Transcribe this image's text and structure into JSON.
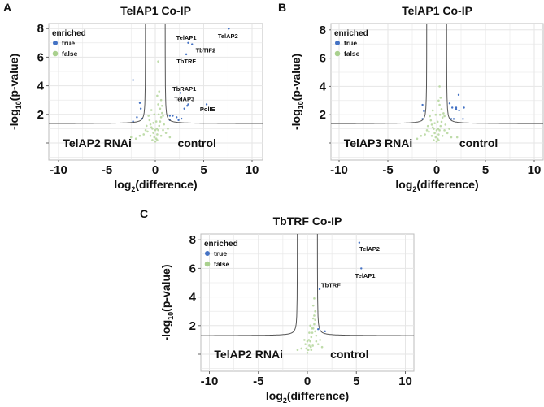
{
  "colors": {
    "true": "#4472c4",
    "false": "#a9d08e",
    "threshold": "#555555",
    "grid": "#e6e6e6",
    "border": "#bdbdbd"
  },
  "chart_data": [
    {
      "panel": "A",
      "type": "scatter",
      "title": "TelAP1 Co-IP",
      "xlabel": "log2(difference)",
      "xlabel_base": "log",
      "xlabel_sub": "2",
      "xlabel_rest": "(difference)",
      "ylabel_base": "-log",
      "ylabel_sub": "10",
      "ylabel_rest": "(p-value)",
      "xlim": [
        -11,
        11
      ],
      "ylim": [
        -1.2,
        8.3
      ],
      "xticks": [
        -10,
        -5,
        0,
        5,
        10
      ],
      "xtick_labels": [
        "-10",
        "-5",
        "0",
        "5",
        "10"
      ],
      "yticks": [
        0,
        2,
        4,
        6,
        8
      ],
      "ytick_labels": [
        "",
        "2",
        "4",
        "6",
        "8"
      ],
      "grid": true,
      "legend": {
        "title": "enriched",
        "entries": [
          "true",
          "false"
        ],
        "placement": "top-left"
      },
      "region_labels": {
        "left": "TelAP2 RNAi",
        "right": "control"
      },
      "threshold": {
        "s0": 1.0,
        "base": 1.35,
        "c": 0.12
      },
      "enriched_true": [
        [
          7.6,
          8.0
        ],
        [
          3.4,
          7.0
        ],
        [
          3.8,
          6.9
        ],
        [
          3.2,
          6.2
        ],
        [
          2.6,
          3.5
        ],
        [
          3.4,
          2.7
        ],
        [
          5.3,
          2.7
        ],
        [
          -2.3,
          4.4
        ],
        [
          -1.6,
          2.8
        ],
        [
          -1.5,
          2.4
        ],
        [
          -1.9,
          1.8
        ],
        [
          -2.3,
          1.5
        ],
        [
          -1.35,
          1.7
        ],
        [
          1.5,
          1.9
        ],
        [
          1.8,
          1.9
        ],
        [
          2.2,
          1.8
        ],
        [
          2.4,
          1.6
        ],
        [
          2.7,
          1.7
        ],
        [
          3.0,
          2.4
        ],
        [
          3.3,
          2.6
        ],
        [
          1.5,
          1.6
        ]
      ],
      "enriched_false": [
        [
          0,
          0.1
        ],
        [
          0.1,
          0.3
        ],
        [
          -0.1,
          0.4
        ],
        [
          0.2,
          0.6
        ],
        [
          -0.2,
          0.7
        ],
        [
          0.3,
          0.9
        ],
        [
          -0.3,
          1.0
        ],
        [
          0.4,
          1.2
        ],
        [
          -0.4,
          1.1
        ],
        [
          0.5,
          1.5
        ],
        [
          -0.5,
          1.3
        ],
        [
          0.6,
          1.8
        ],
        [
          -0.6,
          1.6
        ],
        [
          0.7,
          2.1
        ],
        [
          -0.7,
          1.9
        ],
        [
          0.5,
          2.4
        ],
        [
          0.3,
          2.7
        ],
        [
          0.6,
          3.0
        ],
        [
          0.4,
          3.6
        ],
        [
          0.2,
          3.3
        ],
        [
          -0.8,
          0.8
        ],
        [
          0.8,
          0.9
        ],
        [
          -1.2,
          0.6
        ],
        [
          1.1,
          0.7
        ],
        [
          -1.6,
          0.5
        ],
        [
          1.5,
          0.4
        ],
        [
          -2.0,
          0.3
        ],
        [
          -2.5,
          0.4
        ],
        [
          0,
          0.9
        ],
        [
          0.1,
          1.5
        ],
        [
          -0.1,
          2.0
        ],
        [
          0.9,
          1.3
        ],
        [
          -0.9,
          1.2
        ],
        [
          0.3,
          5.7
        ],
        [
          0.7,
          2.6
        ],
        [
          -0.3,
          0.2
        ],
        [
          0.2,
          0.2
        ],
        [
          -0.5,
          0.5
        ],
        [
          0.6,
          0.5
        ],
        [
          0.15,
          1.0
        ],
        [
          -0.2,
          1.4
        ],
        [
          0.35,
          2.0
        ],
        [
          -0.4,
          2.3
        ],
        [
          0.8,
          1.9
        ],
        [
          -1.0,
          0.9
        ],
        [
          1.3,
          1.0
        ]
      ],
      "annotations": [
        {
          "text": "TelAP2",
          "x": 7.5,
          "y": 7.5
        },
        {
          "text": "TelAP1",
          "x": 3.2,
          "y": 7.4
        },
        {
          "text": "TbTIF2",
          "x": 5.2,
          "y": 6.5
        },
        {
          "text": "TbTRF",
          "x": 3.2,
          "y": 5.75
        },
        {
          "text": "TbRAP1",
          "x": 3.0,
          "y": 3.8
        },
        {
          "text": "TelAP3",
          "x": 3.0,
          "y": 3.1
        },
        {
          "text": "PolIE",
          "x": 5.4,
          "y": 2.4
        }
      ]
    },
    {
      "panel": "B",
      "type": "scatter",
      "title": "TelAP1 Co-IP",
      "xlabel": "log2(difference)",
      "xlabel_base": "log",
      "xlabel_sub": "2",
      "xlabel_rest": "(difference)",
      "ylabel_base": "-log",
      "ylabel_sub": "10",
      "ylabel_rest": "(p-value)",
      "xlim": [
        -10.8,
        10.9
      ],
      "ylim": [
        -1.2,
        8.5
      ],
      "xticks": [
        -10,
        -5,
        0,
        5,
        10
      ],
      "xtick_labels": [
        "-10",
        "-5",
        "0",
        "5",
        "10"
      ],
      "yticks": [
        0,
        2,
        4,
        6,
        8
      ],
      "ytick_labels": [
        "",
        "2",
        "4",
        "6",
        "8"
      ],
      "grid": true,
      "legend": {
        "title": "enriched",
        "entries": [
          "true",
          "false"
        ],
        "placement": "top-left"
      },
      "region_labels": {
        "left": "TelAP3 RNAi",
        "right": "control"
      },
      "threshold": {
        "s0": 1.0,
        "base": 1.36,
        "c": 0.12
      },
      "enriched_true": [
        [
          -1.45,
          2.7
        ],
        [
          -1.3,
          2.25
        ],
        [
          -1.45,
          1.7
        ],
        [
          1.33,
          2.8
        ],
        [
          1.6,
          2.5
        ],
        [
          2.0,
          2.5
        ],
        [
          2.25,
          3.4
        ],
        [
          2.3,
          2.3
        ],
        [
          2.8,
          2.5
        ],
        [
          2.7,
          1.7
        ],
        [
          2.0,
          2.4
        ],
        [
          1.5,
          1.7
        ],
        [
          1.75,
          1.7
        ]
      ],
      "enriched_false": [
        [
          0,
          0.1
        ],
        [
          0.1,
          0.3
        ],
        [
          -0.1,
          0.4
        ],
        [
          0.2,
          0.6
        ],
        [
          -0.2,
          0.7
        ],
        [
          0.3,
          0.9
        ],
        [
          -0.3,
          1.0
        ],
        [
          0.4,
          1.2
        ],
        [
          -0.4,
          1.1
        ],
        [
          0.5,
          1.5
        ],
        [
          -0.5,
          1.3
        ],
        [
          0.6,
          1.8
        ],
        [
          -0.6,
          1.6
        ],
        [
          0.7,
          2.1
        ],
        [
          -0.7,
          1.9
        ],
        [
          0.5,
          2.4
        ],
        [
          0.3,
          2.7
        ],
        [
          0.4,
          3.2
        ],
        [
          0.3,
          4.0
        ],
        [
          0.2,
          3.0
        ],
        [
          -0.8,
          0.8
        ],
        [
          0.8,
          0.9
        ],
        [
          -1.2,
          0.6
        ],
        [
          1.1,
          0.7
        ],
        [
          -1.6,
          0.5
        ],
        [
          1.5,
          0.4
        ],
        [
          -2.0,
          0.3
        ],
        [
          2.1,
          0.4
        ],
        [
          0,
          0.9
        ],
        [
          0.1,
          1.5
        ],
        [
          -0.1,
          2.0
        ],
        [
          0.9,
          1.3
        ],
        [
          -0.9,
          1.2
        ],
        [
          -0.3,
          0.2
        ],
        [
          0.2,
          0.2
        ],
        [
          -0.5,
          0.5
        ],
        [
          0.6,
          0.5
        ],
        [
          0.15,
          1.0
        ],
        [
          -0.2,
          1.4
        ],
        [
          0.35,
          2.0
        ],
        [
          -0.4,
          2.3
        ],
        [
          0.8,
          1.9
        ],
        [
          -1.0,
          0.9
        ],
        [
          1.3,
          1.0
        ]
      ],
      "annotations": []
    },
    {
      "panel": "C",
      "type": "scatter",
      "title": "TbTRF Co-IP",
      "xlabel": "log2(difference)",
      "xlabel_base": "log",
      "xlabel_sub": "2",
      "xlabel_rest": "(difference)",
      "ylabel_base": "-log",
      "ylabel_sub": "10",
      "ylabel_rest": "(p-value)",
      "xlim": [
        -10.8,
        10.9
      ],
      "ylim": [
        -1.2,
        8.4
      ],
      "xticks": [
        -10,
        -5,
        0,
        5,
        10
      ],
      "xtick_labels": [
        "-10",
        "-5",
        "0",
        "5",
        "10"
      ],
      "yticks": [
        0,
        2,
        4,
        6,
        8
      ],
      "ytick_labels": [
        "",
        "2",
        "4",
        "6",
        "8"
      ],
      "grid": true,
      "legend": {
        "title": "enriched",
        "entries": [
          "true",
          "false"
        ],
        "placement": "top-left"
      },
      "region_labels": {
        "left": "TelAP2 RNAi",
        "right": "control"
      },
      "threshold": {
        "s0": 1.0,
        "base": 1.29,
        "c": 0.12
      },
      "enriched_true": [
        [
          5.3,
          7.8
        ],
        [
          5.5,
          6.0
        ],
        [
          1.25,
          4.55
        ],
        [
          1.1,
          1.75
        ],
        [
          1.8,
          1.6
        ]
      ],
      "enriched_false": [
        [
          0,
          0.1
        ],
        [
          0.1,
          0.3
        ],
        [
          -0.1,
          0.4
        ],
        [
          0.2,
          0.6
        ],
        [
          -0.2,
          0.7
        ],
        [
          0.3,
          0.9
        ],
        [
          -0.3,
          1.0
        ],
        [
          0.4,
          1.2
        ],
        [
          0.5,
          1.5
        ],
        [
          0.6,
          1.8
        ],
        [
          0.7,
          2.1
        ],
        [
          0.8,
          2.4
        ],
        [
          0.7,
          2.7
        ],
        [
          0.8,
          3.0
        ],
        [
          0.6,
          3.4
        ],
        [
          0.7,
          3.9
        ],
        [
          -0.6,
          0.4
        ],
        [
          0.9,
          0.9
        ],
        [
          -1.0,
          0.3
        ],
        [
          1.1,
          0.7
        ],
        [
          1.5,
          0.5
        ],
        [
          0,
          0.9
        ],
        [
          0.2,
          1.5
        ],
        [
          0.3,
          2.0
        ],
        [
          0.9,
          1.3
        ],
        [
          0.4,
          0.3
        ],
        [
          0.55,
          0.6
        ],
        [
          0.15,
          1.0
        ],
        [
          0.45,
          1.8
        ],
        [
          0.8,
          1.6
        ],
        [
          1.3,
          1.0
        ],
        [
          0.6,
          2.5
        ],
        [
          0.35,
          0.5
        ]
      ],
      "annotations": [
        {
          "text": "TelAP2",
          "x": 6.35,
          "y": 7.4
        },
        {
          "text": "TelAP1",
          "x": 5.9,
          "y": 5.5
        },
        {
          "text": "TbTRF",
          "x": 2.4,
          "y": 4.85
        }
      ]
    }
  ]
}
